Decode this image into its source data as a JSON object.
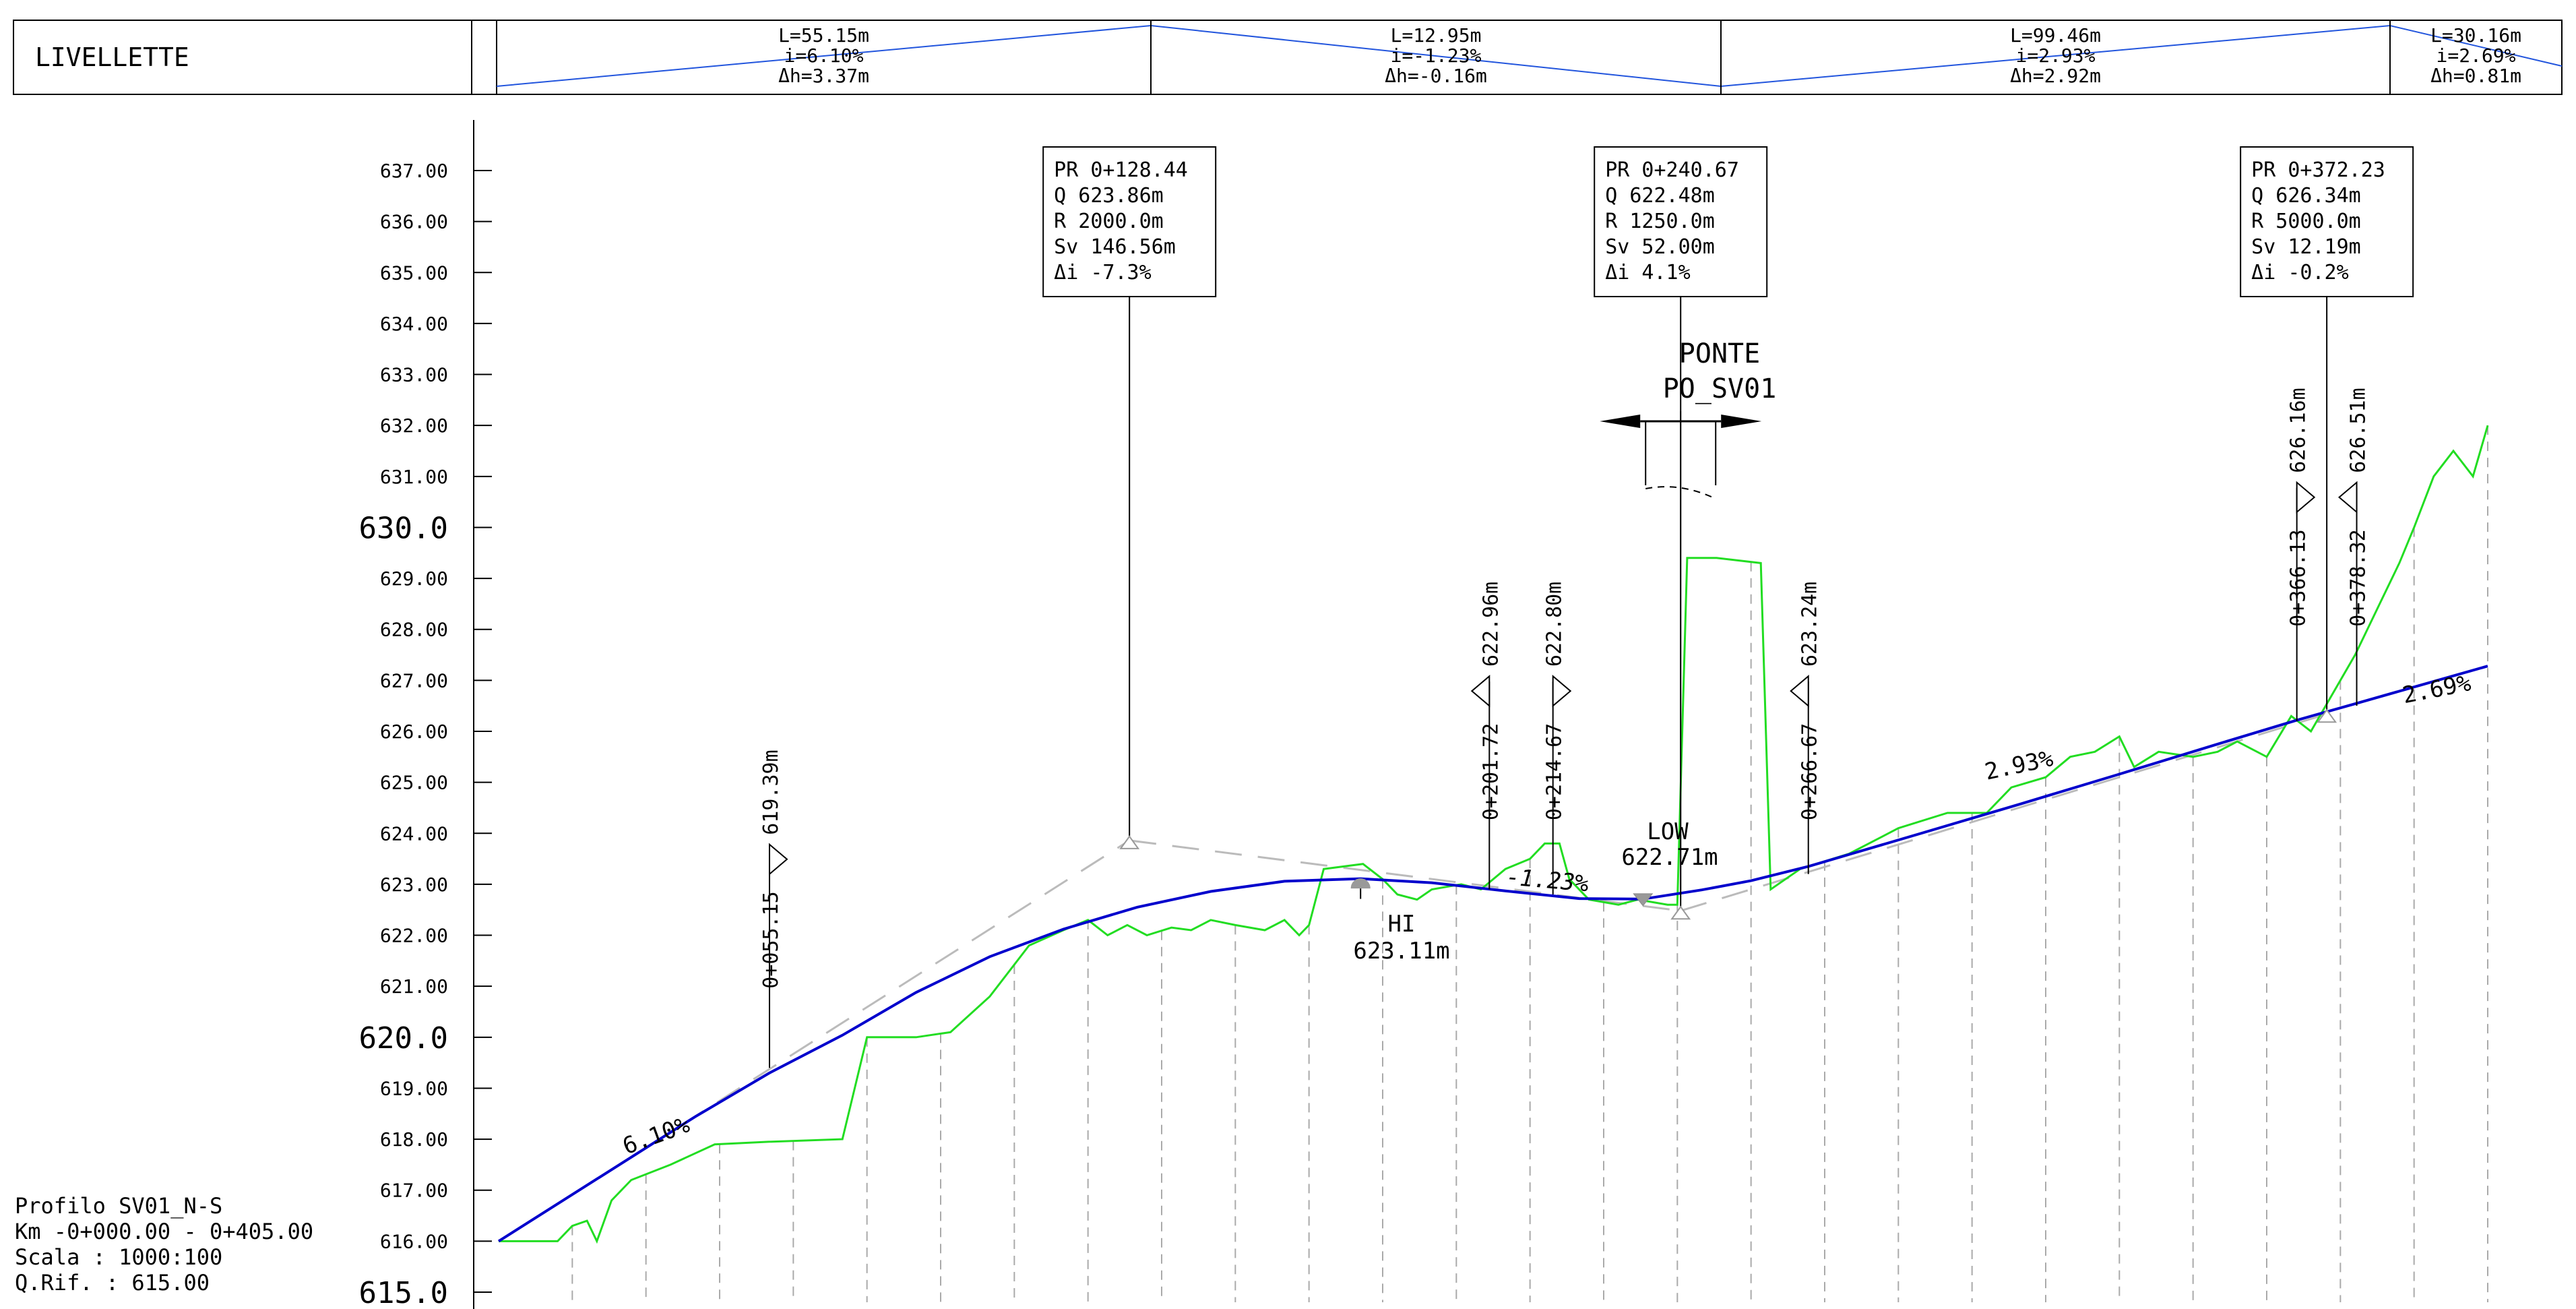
{
  "header": {
    "title": "LIVELLETTE",
    "segments": [
      {
        "l": "L=55.15m",
        "i": "i=6.10%",
        "dh": "Δh=3.37m"
      },
      {
        "l": "L=12.95m",
        "i": "i=-1.23%",
        "dh": "Δh=-0.16m"
      },
      {
        "l": "L=99.46m",
        "i": "i=2.93%",
        "dh": "Δh=2.92m"
      },
      {
        "l": "L=30.16m",
        "i": "i=2.69%",
        "dh": "Δh=0.81m"
      }
    ]
  },
  "axis": {
    "ticks": [
      {
        "v": 637,
        "t": "637.00"
      },
      {
        "v": 636,
        "t": "636.00"
      },
      {
        "v": 635,
        "t": "635.00"
      },
      {
        "v": 634,
        "t": "634.00"
      },
      {
        "v": 633,
        "t": "633.00"
      },
      {
        "v": 632,
        "t": "632.00"
      },
      {
        "v": 631,
        "t": "631.00"
      },
      {
        "v": 630,
        "t": "630.0",
        "major": true
      },
      {
        "v": 629,
        "t": "629.00"
      },
      {
        "v": 628,
        "t": "628.00"
      },
      {
        "v": 627,
        "t": "627.00"
      },
      {
        "v": 626,
        "t": "626.00"
      },
      {
        "v": 625,
        "t": "625.00"
      },
      {
        "v": 624,
        "t": "624.00"
      },
      {
        "v": 623,
        "t": "623.00"
      },
      {
        "v": 622,
        "t": "622.00"
      },
      {
        "v": 621,
        "t": "621.00"
      },
      {
        "v": 620,
        "t": "620.0",
        "major": true
      },
      {
        "v": 619,
        "t": "619.00"
      },
      {
        "v": 618,
        "t": "618.00"
      },
      {
        "v": 617,
        "t": "617.00"
      },
      {
        "v": 616,
        "t": "616.00"
      },
      {
        "v": 615,
        "t": "615.0",
        "major": true
      }
    ]
  },
  "vertical_curves": [
    {
      "x": 128.44,
      "lines": [
        "PR 0+128.44",
        "Q  623.86m",
        "R  2000.0m",
        "Sv 146.56m",
        "Δi -7.3%"
      ]
    },
    {
      "x": 240.67,
      "lines": [
        "PR 0+240.67",
        "Q  622.48m",
        "R  1250.0m",
        "Sv 52.00m",
        "Δi 4.1%"
      ]
    },
    {
      "x": 372.23,
      "lines": [
        "PR 0+372.23",
        "Q  626.34m",
        "R  5000.0m",
        "Sv 12.19m",
        "Δi -0.2%"
      ]
    }
  ],
  "bridge": {
    "x": 240.67,
    "line1": "PONTE",
    "line2": "PO_SV01"
  },
  "elevation_markers": [
    {
      "x": 55.15,
      "station": "0+055.15",
      "elev": "619.39m",
      "dir": "right",
      "tip": 623.2,
      "base": 619.4
    },
    {
      "x": 201.72,
      "station": "0+201.72",
      "elev": "622.96m",
      "dir": "left",
      "tip": 626.5,
      "base": 622.9
    },
    {
      "x": 214.67,
      "station": "0+214.67",
      "elev": "622.80m",
      "dir": "right",
      "tip": 626.5,
      "base": 622.8
    },
    {
      "x": 266.67,
      "station": "0+266.67",
      "elev": "623.24m",
      "dir": "left",
      "tip": 626.5,
      "base": 623.2
    },
    {
      "x": 366.13,
      "station": "0+366.13",
      "elev": "626.16m",
      "dir": "right",
      "tip": 630.3,
      "base": 626.2
    },
    {
      "x": 378.32,
      "station": "0+378.32",
      "elev": "626.51m",
      "dir": "left",
      "tip": 630.3,
      "base": 626.5
    }
  ],
  "hi_point": {
    "label": "HI",
    "elev": "623.11m",
    "x": 175.5,
    "z": 623.11
  },
  "low_point": {
    "label": "LOW",
    "elev": "622.71m",
    "x": 233.0,
    "z": 622.71
  },
  "grades": [
    {
      "text": "6.10%",
      "x": 26,
      "z": 617.7
    },
    {
      "text": "-1.23%",
      "x": 205,
      "z": 623.0
    },
    {
      "text": "2.93%",
      "x": 303,
      "z": 625.05
    },
    {
      "text": "2.69%",
      "x": 388,
      "z": 626.55
    }
  ],
  "info": {
    "line1": "Profilo SV01_N-S",
    "line2": "Km -0+000.00 - 0+405.00",
    "line3": "Scala : 1000:100",
    "line4": "Q.Rif. : 615.00"
  },
  "chart_data": {
    "type": "line",
    "title": "",
    "xlabel": "",
    "ylabel": "",
    "xlim": [
      0,
      405
    ],
    "ylim": [
      615,
      637
    ],
    "series": [
      {
        "values": [
          [
            0,
            616.0
          ],
          [
            12,
            616.0
          ],
          [
            15,
            616.3
          ],
          [
            18,
            616.4
          ],
          [
            20,
            616.0
          ],
          [
            23,
            616.8
          ],
          [
            27,
            617.2
          ],
          [
            35,
            617.5
          ],
          [
            44,
            617.9
          ],
          [
            55,
            617.95
          ],
          [
            70,
            618.0
          ],
          [
            75,
            620.0
          ],
          [
            85,
            620.0
          ],
          [
            92,
            620.1
          ],
          [
            100,
            620.8
          ],
          [
            108,
            621.8
          ],
          [
            115,
            622.1
          ],
          [
            120,
            622.3
          ],
          [
            124,
            622.0
          ],
          [
            128,
            622.2
          ],
          [
            132,
            622.0
          ],
          [
            137,
            622.15
          ],
          [
            141,
            622.1
          ],
          [
            145,
            622.3
          ],
          [
            150,
            622.2
          ],
          [
            156,
            622.1
          ],
          [
            160,
            622.3
          ],
          [
            163,
            622.0
          ],
          [
            165,
            622.2
          ],
          [
            168,
            623.3
          ],
          [
            176,
            623.4
          ],
          [
            180,
            623.1
          ],
          [
            183,
            622.8
          ],
          [
            187,
            622.7
          ],
          [
            190,
            622.9
          ],
          [
            196,
            623.0
          ],
          [
            200,
            622.9
          ],
          [
            205,
            623.3
          ],
          [
            210,
            623.5
          ],
          [
            213,
            623.8
          ],
          [
            216,
            623.8
          ],
          [
            218,
            623.1
          ],
          [
            222,
            622.7
          ],
          [
            228,
            622.6
          ],
          [
            232,
            622.7
          ],
          [
            238,
            622.6
          ],
          [
            240,
            622.6
          ],
          [
            242,
            629.4
          ],
          [
            248,
            629.4
          ],
          [
            257,
            629.3
          ],
          [
            259,
            622.9
          ],
          [
            265,
            623.3
          ],
          [
            275,
            623.6
          ],
          [
            285,
            624.1
          ],
          [
            295,
            624.4
          ],
          [
            303,
            624.4
          ],
          [
            308,
            624.9
          ],
          [
            315,
            625.1
          ],
          [
            320,
            625.5
          ],
          [
            325,
            625.6
          ],
          [
            330,
            625.9
          ],
          [
            333,
            625.3
          ],
          [
            338,
            625.6
          ],
          [
            345,
            625.5
          ],
          [
            350,
            625.6
          ],
          [
            354,
            625.8
          ],
          [
            360,
            625.5
          ],
          [
            365,
            626.3
          ],
          [
            369,
            626.0
          ],
          [
            375,
            627.0
          ],
          [
            378,
            627.5
          ],
          [
            383,
            628.5
          ],
          [
            387,
            629.3
          ],
          [
            390,
            630.0
          ],
          [
            394,
            631.0
          ],
          [
            398,
            631.5
          ],
          [
            402,
            631.0
          ],
          [
            405,
            632.0
          ]
        ]
      },
      {
        "values": [
          [
            0,
            616.0
          ],
          [
            20,
            617.22
          ],
          [
            40,
            618.44
          ],
          [
            55.15,
            619.3
          ],
          [
            70,
            620.04
          ],
          [
            85,
            620.88
          ],
          [
            100,
            621.58
          ],
          [
            115,
            622.12
          ],
          [
            130,
            622.55
          ],
          [
            145,
            622.86
          ],
          [
            160,
            623.06
          ],
          [
            175.5,
            623.11
          ],
          [
            190,
            623.03
          ],
          [
            205,
            622.87
          ],
          [
            220,
            622.72
          ],
          [
            233,
            622.71
          ],
          [
            245,
            622.89
          ],
          [
            255,
            623.07
          ],
          [
            266.67,
            623.35
          ],
          [
            290,
            624.01
          ],
          [
            310,
            624.58
          ],
          [
            330,
            625.16
          ],
          [
            350,
            625.75
          ],
          [
            366.13,
            626.22
          ],
          [
            378.32,
            626.55
          ],
          [
            390,
            626.87
          ],
          [
            405,
            627.28
          ]
        ]
      }
    ]
  }
}
